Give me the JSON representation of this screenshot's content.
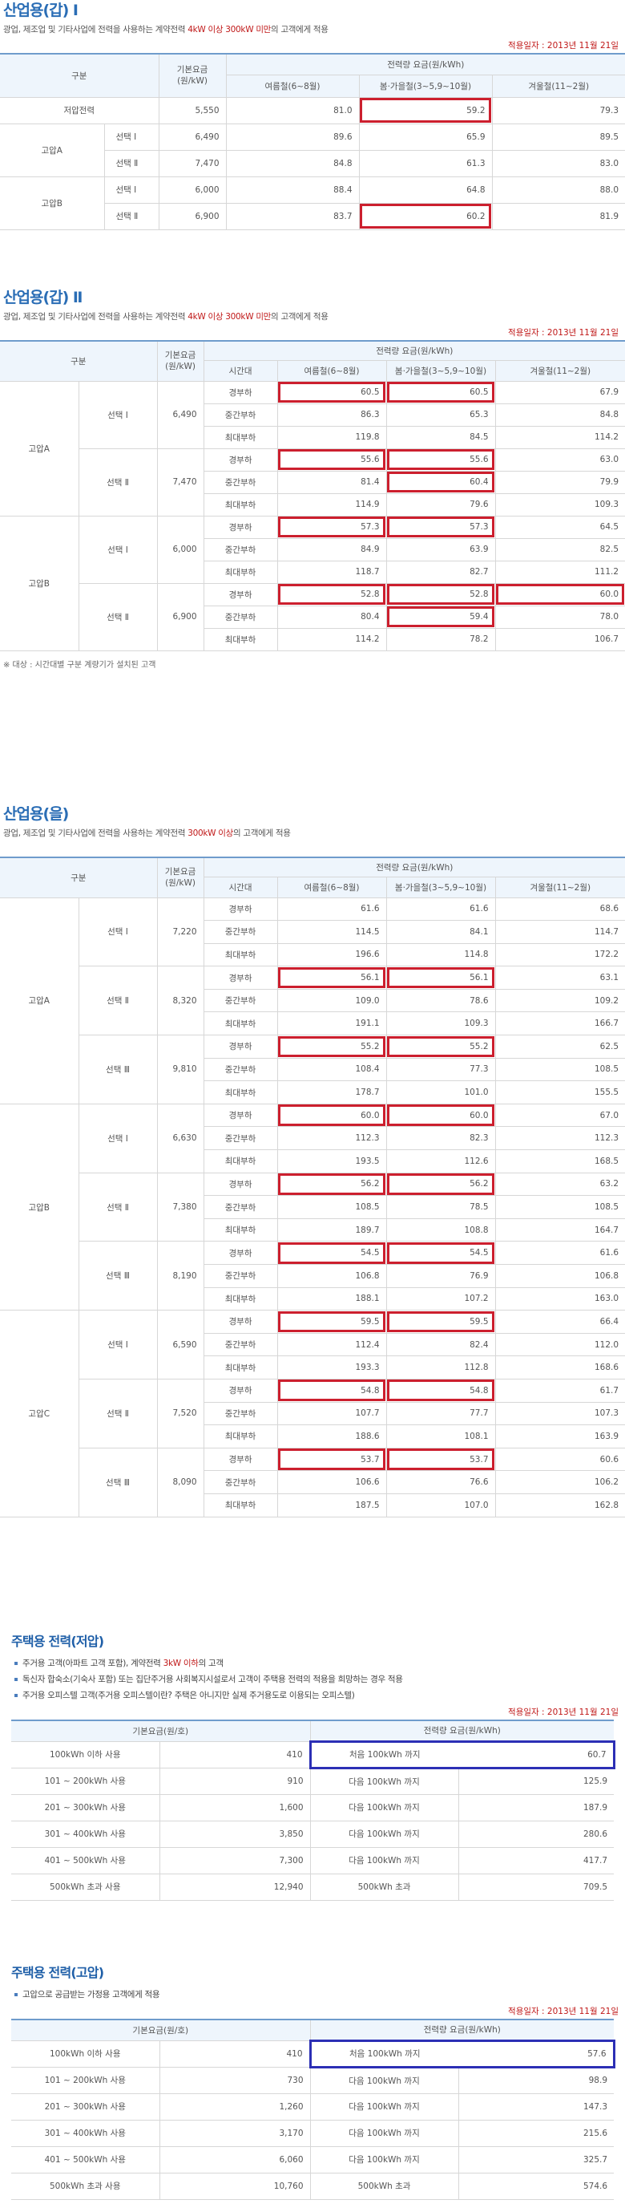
{
  "s1": {
    "title": "산업용(갑) I",
    "desc_pre": "광업, 제조업 및 기타사업에 전력을 사용하는 계약전력 ",
    "desc_hl": "4kW 이상 300kW 미만",
    "desc_post": "의 고객에게 적용",
    "date": "적용일자 : 2013년 11월 21일",
    "head": {
      "gubun": "구분",
      "base": "기본요금\n(원/kW)",
      "energy": "전력량 요금(원/kWh)",
      "summer": "여름철(6~8월)",
      "spring": "봄·가을철(3~5,9~10월)",
      "winter": "겨울철(11~2월)"
    },
    "rows": [
      {
        "g1": "저압전력",
        "g2": "",
        "base": "5,550",
        "s": "81.0",
        "sp": "59.2",
        "w": "79.3"
      },
      {
        "g1": "고압A",
        "g2": "선택 Ⅰ",
        "base": "6,490",
        "s": "89.6",
        "sp": "65.9",
        "w": "89.5"
      },
      {
        "g1": "",
        "g2": "선택 Ⅱ",
        "base": "7,470",
        "s": "84.8",
        "sp": "61.3",
        "w": "83.0"
      },
      {
        "g1": "고압B",
        "g2": "선택 Ⅰ",
        "base": "6,000",
        "s": "88.4",
        "sp": "64.8",
        "w": "88.0"
      },
      {
        "g1": "",
        "g2": "선택 Ⅱ",
        "base": "6,900",
        "s": "83.7",
        "sp": "60.2",
        "w": "81.9"
      }
    ]
  },
  "s2": {
    "title": "산업용(갑) Ⅱ",
    "desc_pre": "광업, 제조업 및 기타사업에 전력을 사용하는 계약전력 ",
    "desc_hl": "4kW 이상 300kW 미만",
    "desc_post": "의 고객에게 적용",
    "date": "적용일자 : 2013년 11월 21일",
    "head": {
      "gubun": "구분",
      "base": "기본요금\n(원/kW)",
      "energy": "전력량 요금(원/kWh)",
      "time": "시간대",
      "summer": "여름철(6~8월)",
      "spring": "봄·가을철(3~5,9~10월)",
      "winter": "겨울철(11~2월)"
    },
    "groups": [
      {
        "name": "고압A",
        "opts": [
          {
            "name": "선택 Ⅰ",
            "base": "6,490",
            "rows": [
              [
                "경부하",
                "60.5",
                "60.5",
                "67.9"
              ],
              [
                "중간부하",
                "86.3",
                "65.3",
                "84.8"
              ],
              [
                "최대부하",
                "119.8",
                "84.5",
                "114.2"
              ]
            ]
          },
          {
            "name": "선택 Ⅱ",
            "base": "7,470",
            "rows": [
              [
                "경부하",
                "55.6",
                "55.6",
                "63.0"
              ],
              [
                "중간부하",
                "81.4",
                "60.4",
                "79.9"
              ],
              [
                "최대부하",
                "114.9",
                "79.6",
                "109.3"
              ]
            ]
          }
        ]
      },
      {
        "name": "고압B",
        "opts": [
          {
            "name": "선택 Ⅰ",
            "base": "6,000",
            "rows": [
              [
                "경부하",
                "57.3",
                "57.3",
                "64.5"
              ],
              [
                "중간부하",
                "84.9",
                "63.9",
                "82.5"
              ],
              [
                "최대부하",
                "118.7",
                "82.7",
                "111.2"
              ]
            ]
          },
          {
            "name": "선택 Ⅱ",
            "base": "6,900",
            "rows": [
              [
                "경부하",
                "52.8",
                "52.8",
                "60.0"
              ],
              [
                "중간부하",
                "80.4",
                "59.4",
                "78.0"
              ],
              [
                "최대부하",
                "114.2",
                "78.2",
                "106.7"
              ]
            ]
          }
        ]
      }
    ],
    "note": "※ 대상 : 시간대별 구분 계량기가 설치된 고객"
  },
  "s3": {
    "title": "산업용(을)",
    "desc_pre": "광업, 제조업 및 기타사업에 전력을 사용하는 계약전력 ",
    "desc_hl": "300kW 이상",
    "desc_post": "의 고객에게 적용",
    "head": {
      "gubun": "구분",
      "base": "기본요금\n(원/kW)",
      "energy": "전력량 요금(원/kWh)",
      "time": "시간대",
      "summer": "여름철(6~8월)",
      "spring": "봄·가을철(3~5,9~10월)",
      "winter": "겨울철(11~2월)"
    },
    "groups": [
      {
        "name": "고압A",
        "opts": [
          {
            "name": "선택 Ⅰ",
            "base": "7,220",
            "rows": [
              [
                "경부하",
                "61.6",
                "61.6",
                "68.6"
              ],
              [
                "중간부하",
                "114.5",
                "84.1",
                "114.7"
              ],
              [
                "최대부하",
                "196.6",
                "114.8",
                "172.2"
              ]
            ]
          },
          {
            "name": "선택 Ⅱ",
            "base": "8,320",
            "rows": [
              [
                "경부하",
                "56.1",
                "56.1",
                "63.1"
              ],
              [
                "중간부하",
                "109.0",
                "78.6",
                "109.2"
              ],
              [
                "최대부하",
                "191.1",
                "109.3",
                "166.7"
              ]
            ]
          },
          {
            "name": "선택 Ⅲ",
            "base": "9,810",
            "rows": [
              [
                "경부하",
                "55.2",
                "55.2",
                "62.5"
              ],
              [
                "중간부하",
                "108.4",
                "77.3",
                "108.5"
              ],
              [
                "최대부하",
                "178.7",
                "101.0",
                "155.5"
              ]
            ]
          }
        ]
      },
      {
        "name": "고압B",
        "opts": [
          {
            "name": "선택 Ⅰ",
            "base": "6,630",
            "rows": [
              [
                "경부하",
                "60.0",
                "60.0",
                "67.0"
              ],
              [
                "중간부하",
                "112.3",
                "82.3",
                "112.3"
              ],
              [
                "최대부하",
                "193.5",
                "112.6",
                "168.5"
              ]
            ]
          },
          {
            "name": "선택 Ⅱ",
            "base": "7,380",
            "rows": [
              [
                "경부하",
                "56.2",
                "56.2",
                "63.2"
              ],
              [
                "중간부하",
                "108.5",
                "78.5",
                "108.5"
              ],
              [
                "최대부하",
                "189.7",
                "108.8",
                "164.7"
              ]
            ]
          },
          {
            "name": "선택 Ⅲ",
            "base": "8,190",
            "rows": [
              [
                "경부하",
                "54.5",
                "54.5",
                "61.6"
              ],
              [
                "중간부하",
                "106.8",
                "76.9",
                "106.8"
              ],
              [
                "최대부하",
                "188.1",
                "107.2",
                "163.0"
              ]
            ]
          }
        ]
      },
      {
        "name": "고압C",
        "opts": [
          {
            "name": "선택 Ⅰ",
            "base": "6,590",
            "rows": [
              [
                "경부하",
                "59.5",
                "59.5",
                "66.4"
              ],
              [
                "중간부하",
                "112.4",
                "82.4",
                "112.0"
              ],
              [
                "최대부하",
                "193.3",
                "112.8",
                "168.6"
              ]
            ]
          },
          {
            "name": "선택 Ⅱ",
            "base": "7,520",
            "rows": [
              [
                "경부하",
                "54.8",
                "54.8",
                "61.7"
              ],
              [
                "중간부하",
                "107.7",
                "77.7",
                "107.3"
              ],
              [
                "최대부하",
                "188.6",
                "108.1",
                "163.9"
              ]
            ]
          },
          {
            "name": "선택 Ⅲ",
            "base": "8,090",
            "rows": [
              [
                "경부하",
                "53.7",
                "53.7",
                "60.6"
              ],
              [
                "중간부하",
                "106.6",
                "76.6",
                "106.2"
              ],
              [
                "최대부하",
                "187.5",
                "107.0",
                "162.8"
              ]
            ]
          }
        ]
      }
    ]
  },
  "s4": {
    "title": "주택용 전력(저압)",
    "bullets": [
      {
        "pre": "주거용 고객(아파트 고객 포함), 계약전력 ",
        "hl": "3kW 이하",
        "post": "의 고객"
      },
      {
        "pre": "독신자 합숙소(기숙사 포함) 또는 집단주거용 사회복지시설로서 고객이 주택용 전력의 적용을 희망하는 경우 적용",
        "hl": "",
        "post": ""
      },
      {
        "pre": "주거용 오피스텔 고객(주거용 오피스텔이란? 주택은 아니지만 실제 주거용도로 이용되는 오피스텔)",
        "hl": "",
        "post": ""
      }
    ],
    "date": "적용일자 : 2013년 11월 21일",
    "head": {
      "base": "기본요금(원/호)",
      "energy": "전력량 요금(원/kWh)"
    },
    "rows": [
      [
        "100kWh 이하 사용",
        "410",
        "처음 100kWh 까지",
        "60.7"
      ],
      [
        "101 ~ 200kWh 사용",
        "910",
        "다음 100kWh 까지",
        "125.9"
      ],
      [
        "201 ~ 300kWh 사용",
        "1,600",
        "다음 100kWh 까지",
        "187.9"
      ],
      [
        "301 ~ 400kWh 사용",
        "3,850",
        "다음 100kWh 까지",
        "280.6"
      ],
      [
        "401 ~ 500kWh 사용",
        "7,300",
        "다음 100kWh 까지",
        "417.7"
      ],
      [
        "500kWh 초과 사용",
        "12,940",
        "500kWh 초과",
        "709.5"
      ]
    ]
  },
  "s5": {
    "title": "주택용 전력(고압)",
    "bullets": [
      {
        "pre": "고압으로 공급받는 가정용 고객에게 적용",
        "hl": "",
        "post": ""
      }
    ],
    "date": "적용일자 : 2013년 11월 21일",
    "head": {
      "base": "기본요금(원/호)",
      "energy": "전력량 요금(원/kWh)"
    },
    "rows": [
      [
        "100kWh 이하 사용",
        "410",
        "처음 100kWh 까지",
        "57.6"
      ],
      [
        "101 ~ 200kWh 사용",
        "730",
        "다음 100kWh 까지",
        "98.9"
      ],
      [
        "201 ~ 300kWh 사용",
        "1,260",
        "다음 100kWh 까지",
        "147.3"
      ],
      [
        "301 ~ 400kWh 사용",
        "3,170",
        "다음 100kWh 까지",
        "215.6"
      ],
      [
        "401 ~ 500kWh 사용",
        "6,060",
        "다음 100kWh 까지",
        "325.7"
      ],
      [
        "500kWh 초과 사용",
        "10,760",
        "500kWh 초과",
        "574.6"
      ]
    ]
  }
}
